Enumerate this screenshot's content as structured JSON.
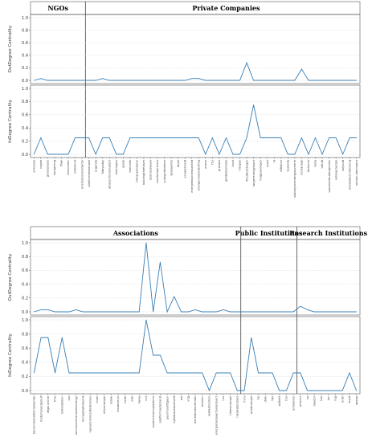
{
  "chart_data": [
    {
      "type": "line",
      "sections": [
        {
          "label": "NGOs",
          "start": 0,
          "end": 8
        },
        {
          "label": "Private Companies",
          "start": 8,
          "end": 49
        }
      ],
      "categories": [
        "amnesty",
        "cogea",
        "greenpeace",
        "hungerevg",
        "iflaw",
        "innocenter",
        "oxfamintl",
        "orientationsolidarity",
        "platformbewaruzel",
        "urgenda",
        "5daysday",
        "albassimoreotubeth",
        "amerogen",
        "apple",
        "beeroofs",
        "blkrappenswiss",
        "buildingthefuture",
        "businesswave",
        "comfortpartners",
        "culargridbalture",
        "dyasaenite",
        "dune",
        "ecoaloshield",
        "energiebusinessunited",
        "energyinoutsidesfreq",
        "eneco",
        "f1y",
        "granate",
        "geldeplyshowe",
        "ikcat",
        "inergeo",
        "ifoodbuildingto",
        "langerenergysport",
        "magnaamigen",
        "nuon",
        "rd",
        "rdfbatch",
        "vassoda",
        "skubbyconenergypurverie",
        "tiemansgo",
        "tbthome",
        "tesla",
        "tufuld",
        "vasarbeitoudergemtes",
        "volksaenergie",
        "voljould",
        "windalbasmidnisting",
        "wintec-aberhaaru"
      ],
      "series": [
        {
          "values": [
            0,
            0.03,
            0,
            0,
            0,
            0,
            0,
            0,
            0,
            0,
            0.03,
            0,
            0,
            0,
            0,
            0,
            0,
            0,
            0,
            0,
            0,
            0,
            0,
            0.03,
            0.03,
            0,
            0,
            0,
            0,
            0,
            0,
            0.28,
            0,
            0,
            0,
            0,
            0,
            0,
            0,
            0.18,
            0,
            0,
            0,
            0,
            0,
            0,
            0,
            0
          ]
        },
        {
          "values": [
            0,
            0.25,
            0,
            0,
            0,
            0,
            0.25,
            0.25,
            0.25,
            0,
            0.25,
            0.25,
            0,
            0,
            0.25,
            0.25,
            0.25,
            0.25,
            0.25,
            0.25,
            0.25,
            0.25,
            0.25,
            0.25,
            0.25,
            0,
            0.25,
            0,
            0.25,
            0,
            0,
            0.25,
            0.75,
            0.25,
            0.25,
            0.25,
            0.25,
            0,
            0,
            0.25,
            0,
            0.25,
            0,
            0.25,
            0.25,
            0,
            0.25,
            0.25
          ]
        }
      ],
      "panels": [
        {
          "ylabel": "OutDegree Centrality",
          "ylim": [
            0,
            1.0
          ],
          "yticks": [
            "0.0",
            "0.2",
            "0.4",
            "0.6",
            "0.8",
            "1.0"
          ]
        },
        {
          "ylabel": "InDegree Centrality",
          "ylim": [
            0,
            1.0
          ],
          "yticks": [
            "0.0",
            "0.2",
            "0.4",
            "0.6",
            "0.8",
            "1.0"
          ]
        }
      ]
    },
    {
      "type": "line",
      "sections": [
        {
          "label": "Associations",
          "start": 0,
          "end": 30
        },
        {
          "label": "Public Institutions",
          "start": 30,
          "end": 38
        },
        {
          "label": "Research Institutions",
          "start": 38,
          "end": 47
        }
      ],
      "categories": [
        "buurtinitiatiefzonnewende",
        "bodemenergiehuf",
        "dfgw online",
        "fme",
        "hollandsbier",
        "ipo",
        "kenniscentrumsolarenergy",
        "klimaattafelbeord",
        "natuurenmilieufederaties",
        "nmw",
        "nlihoenergie",
        "nslow",
        "nieuwnerjo",
        "nvde",
        "ode",
        "nwea",
        "nvt",
        "ondernemersplatform",
        "platformnederland",
        "puurmooitfiguur",
        "tijdsduurzaamheid",
        "wb",
        "vng",
        "wereldnatuurfonds",
        "winkler",
        "wwfaktivisten",
        "energiebespaartoekenpact",
        "rvo",
        "tielenenergie",
        "rijkswaterstaat",
        "rivm",
        "windenergie",
        "tie",
        "dhw",
        "tgs",
        "tuDelft",
        "tno",
        "unitwente",
        "utrecht",
        "vu",
        "tweeth",
        "tue",
        "tsc",
        "rug",
        "erdk",
        "zuyd",
        "aaaaa"
      ],
      "series": [
        {
          "values": [
            0,
            0.03,
            0.03,
            0,
            0,
            0,
            0.03,
            0,
            0,
            0,
            0,
            0,
            0,
            0,
            0,
            0,
            1.0,
            0,
            0.72,
            0,
            0.22,
            0,
            0,
            0.03,
            0,
            0,
            0,
            0.03,
            0,
            0,
            0,
            0,
            0,
            0,
            0,
            0,
            0,
            0,
            0.08,
            0.03,
            0,
            0,
            0,
            0,
            0,
            0,
            0
          ]
        },
        {
          "values": [
            0.25,
            0.75,
            0.75,
            0.25,
            0.75,
            0.25,
            0.25,
            0.25,
            0.25,
            0.25,
            0.25,
            0.25,
            0.25,
            0.25,
            0.25,
            0.25,
            1.0,
            0.5,
            0.5,
            0.25,
            0.25,
            0.25,
            0.25,
            0.25,
            0.25,
            0,
            0.25,
            0.25,
            0.25,
            0,
            0,
            0.75,
            0.25,
            0.25,
            0.25,
            0,
            0,
            0.25,
            0.25,
            0,
            0,
            0,
            0,
            0,
            0,
            0.25,
            0
          ]
        }
      ],
      "panels": [
        {
          "ylabel": "OutDegree Centrality",
          "ylim": [
            0,
            1.0
          ],
          "yticks": [
            "0.0",
            "0.2",
            "0.4",
            "0.6",
            "0.8",
            "1.0"
          ]
        },
        {
          "ylabel": "InDegree Centrality",
          "ylim": [
            0,
            1.0
          ],
          "yticks": [
            "0.0",
            "0.2",
            "0.4",
            "0.6",
            "0.8",
            "1.0"
          ]
        }
      ]
    }
  ],
  "style": {
    "line_color": "#3a7fb5",
    "frame_color": "#555555",
    "grid_color": "#d4d4d4",
    "divider_color": "#444444"
  }
}
